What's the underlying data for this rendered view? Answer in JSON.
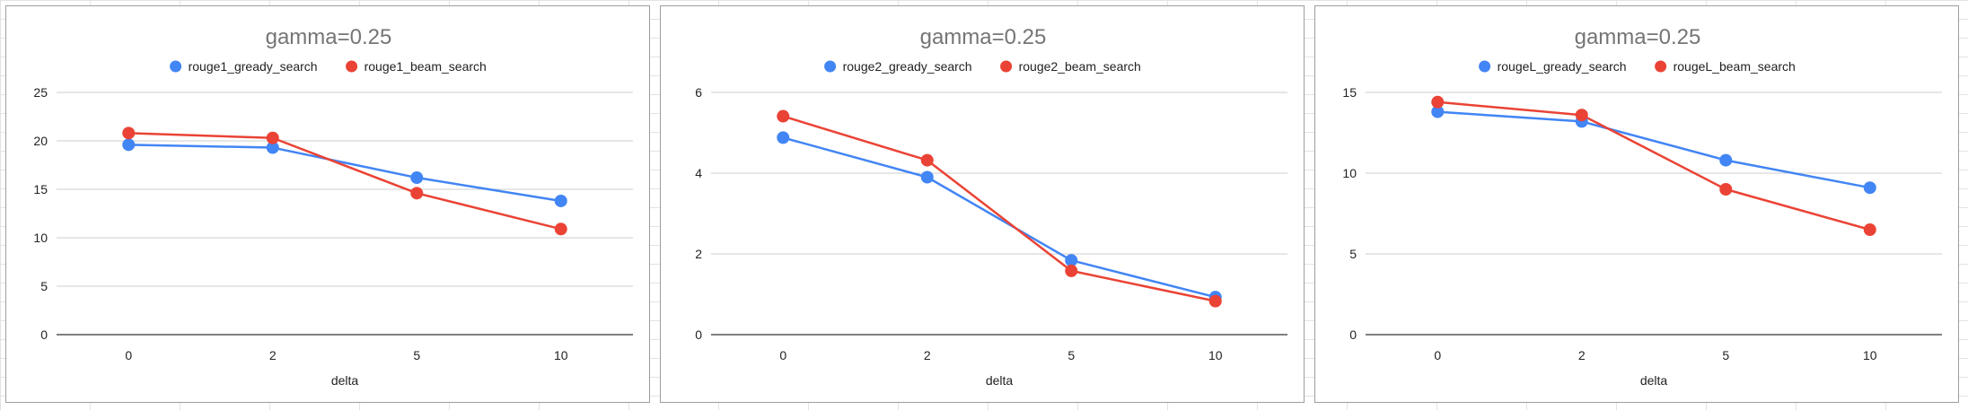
{
  "chart_data": [
    {
      "type": "line",
      "title": "gamma=0.25",
      "xlabel": "delta",
      "ylabel": "",
      "categories": [
        "0",
        "2",
        "5",
        "10"
      ],
      "ylim": [
        0,
        25
      ],
      "yticks": [
        "0",
        "5",
        "10",
        "15",
        "20",
        "25"
      ],
      "grid": true,
      "legend_position": "top",
      "series": [
        {
          "name": "rouge1_gready_search",
          "color": "#4285f4",
          "values": [
            19.6,
            19.3,
            16.2,
            13.8
          ]
        },
        {
          "name": "rouge1_beam_search",
          "color": "#ea4335",
          "values": [
            20.8,
            20.3,
            14.6,
            10.9
          ]
        }
      ]
    },
    {
      "type": "line",
      "title": "gamma=0.25",
      "xlabel": "delta",
      "ylabel": "",
      "categories": [
        "0",
        "2",
        "5",
        "10"
      ],
      "ylim": [
        0,
        6
      ],
      "yticks": [
        "0",
        "2",
        "4",
        "6"
      ],
      "grid": true,
      "legend_position": "top",
      "series": [
        {
          "name": "rouge2_gready_search",
          "color": "#4285f4",
          "values": [
            4.88,
            3.9,
            1.84,
            0.93
          ]
        },
        {
          "name": "rouge2_beam_search",
          "color": "#ea4335",
          "values": [
            5.41,
            4.32,
            1.58,
            0.83
          ]
        }
      ]
    },
    {
      "type": "line",
      "title": "gamma=0.25",
      "xlabel": "delta",
      "ylabel": "",
      "categories": [
        "0",
        "2",
        "5",
        "10"
      ],
      "ylim": [
        0,
        15
      ],
      "yticks": [
        "0",
        "5",
        "10",
        "15"
      ],
      "grid": true,
      "legend_position": "top",
      "series": [
        {
          "name": "rougeL_gready_search",
          "color": "#4285f4",
          "values": [
            13.8,
            13.2,
            10.8,
            9.1
          ]
        },
        {
          "name": "rougeL_beam_search",
          "color": "#ea4335",
          "values": [
            14.4,
            13.6,
            9.0,
            6.5
          ]
        }
      ]
    }
  ]
}
